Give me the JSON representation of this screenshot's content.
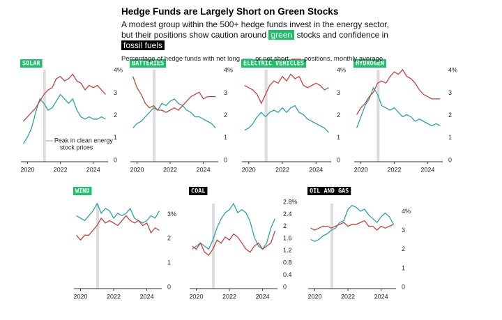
{
  "header": {
    "title": "Hedge Funds are Largely Short on Green Stocks",
    "subtitle": [
      "A modest group within the 500+ hedge funds invest in the energy sector,",
      "but their positions show caution around",
      "green",
      "stocks and confidence in",
      "fossil fuels"
    ],
    "legend": [
      "Percentage of hedge funds with net long",
      "or net short",
      "positions, monthly average"
    ]
  },
  "chart_data": [
    {
      "type": "line",
      "title": "SOLAR",
      "title_color": "#1fbf6b",
      "x": [
        2019.75,
        2020,
        2020.25,
        2020.5,
        2020.75,
        2021,
        2021.25,
        2021.5,
        2021.75,
        2022,
        2022.25,
        2022.5,
        2022.75,
        2023,
        2023.25,
        2023.5,
        2023.75,
        2024,
        2024.25,
        2024.5,
        2024.75
      ],
      "xlim": [
        2019.6,
        2024.9
      ],
      "xticks": [
        2020,
        2022,
        2024
      ],
      "ylim": [
        0,
        4.1
      ],
      "yticks": [
        {
          "value": 4,
          "label": "4%"
        },
        3,
        2,
        1,
        0
      ],
      "peak_band": [
        2020.95,
        2021.12
      ],
      "annotation": [
        "Peak in clean energy",
        "stock prices"
      ],
      "series": [
        {
          "color": "#2aa3a8",
          "values": [
            0.8,
            1.1,
            1.5,
            2.2,
            2.8,
            2.6,
            2.3,
            2.4,
            2.7,
            3.0,
            2.8,
            2.6,
            2.8,
            2.3,
            2.0,
            1.9,
            2.0,
            1.9,
            1.9,
            2.0,
            1.9
          ]
        },
        {
          "color": "#c6423a",
          "values": [
            1.8,
            2.0,
            2.2,
            2.4,
            2.7,
            3.0,
            3.2,
            3.3,
            3.7,
            3.8,
            3.6,
            3.7,
            3.9,
            3.6,
            3.5,
            3.2,
            3.4,
            3.3,
            3.4,
            3.2,
            3.0
          ]
        }
      ]
    },
    {
      "type": "line",
      "title": "BATTERIES",
      "title_color": "#1fbf6b",
      "x": [
        2019.75,
        2020,
        2020.25,
        2020.5,
        2020.75,
        2021,
        2021.25,
        2021.5,
        2021.75,
        2022,
        2022.25,
        2022.5,
        2022.75,
        2023,
        2023.25,
        2023.5,
        2023.75,
        2024,
        2024.25,
        2024.5,
        2024.75
      ],
      "xlim": [
        2019.6,
        2024.9
      ],
      "xticks": [
        2020,
        2022,
        2024
      ],
      "ylim": [
        0,
        4.1
      ],
      "yticks": [
        {
          "value": 4,
          "label": "4%"
        },
        3,
        2,
        1,
        0
      ],
      "peak_band": [
        2020.95,
        2021.12
      ],
      "series": [
        {
          "color": "#2aa3a8",
          "values": [
            1.5,
            1.7,
            1.8,
            2.0,
            2.2,
            2.4,
            2.3,
            2.6,
            2.5,
            2.7,
            2.8,
            2.6,
            2.5,
            2.3,
            2.2,
            2.0,
            2.0,
            1.9,
            1.8,
            1.7,
            1.5
          ]
        },
        {
          "color": "#c6423a",
          "values": [
            3.8,
            3.3,
            3.0,
            2.6,
            2.4,
            2.5,
            2.3,
            2.3,
            2.2,
            2.3,
            2.4,
            2.3,
            2.5,
            2.7,
            2.9,
            3.0,
            3.1,
            2.8,
            2.9,
            2.9,
            2.9
          ]
        }
      ]
    },
    {
      "type": "line",
      "title": "ELECTRIC VEHICLES",
      "title_color": "#1fbf6b",
      "x": [
        2019.75,
        2020,
        2020.25,
        2020.5,
        2020.75,
        2021,
        2021.25,
        2021.5,
        2021.75,
        2022,
        2022.25,
        2022.5,
        2022.75,
        2023,
        2023.25,
        2023.5,
        2023.75,
        2024,
        2024.25,
        2024.5,
        2024.75
      ],
      "xlim": [
        2019.6,
        2024.9
      ],
      "xticks": [
        2020,
        2022,
        2024
      ],
      "ylim": [
        0,
        4.1
      ],
      "yticks": [
        {
          "value": 4,
          "label": "4%"
        },
        3,
        2,
        1,
        0
      ],
      "peak_band": [
        2020.95,
        2021.12
      ],
      "series": [
        {
          "color": "#2aa3a8",
          "values": [
            1.4,
            1.5,
            1.7,
            2.0,
            2.2,
            2.0,
            2.2,
            2.3,
            2.2,
            2.4,
            2.2,
            2.4,
            2.5,
            2.2,
            2.1,
            1.9,
            1.8,
            1.7,
            1.6,
            1.5,
            1.3
          ]
        },
        {
          "color": "#c6423a",
          "values": [
            3.4,
            3.3,
            3.2,
            3.0,
            2.6,
            3.0,
            3.4,
            3.6,
            3.5,
            3.8,
            3.6,
            3.9,
            3.7,
            3.8,
            3.4,
            3.3,
            3.4,
            3.5,
            3.4,
            3.2,
            3.3
          ]
        }
      ]
    },
    {
      "type": "line",
      "title": "HYDROGEN",
      "title_color": "#1fbf6b",
      "x": [
        2019.75,
        2020,
        2020.25,
        2020.5,
        2020.75,
        2021,
        2021.25,
        2021.5,
        2021.75,
        2022,
        2022.25,
        2022.5,
        2022.75,
        2023,
        2023.25,
        2023.5,
        2023.75,
        2024,
        2024.25,
        2024.5,
        2024.75
      ],
      "xlim": [
        2019.6,
        2024.9
      ],
      "xticks": [
        2020,
        2022,
        2024
      ],
      "ylim": [
        0,
        4.1
      ],
      "yticks": [
        {
          "value": 4,
          "label": "4%"
        },
        3,
        2,
        1,
        0
      ],
      "peak_band": [
        2020.95,
        2021.12
      ],
      "series": [
        {
          "color": "#2aa3a8",
          "values": [
            1.5,
            2.0,
            2.5,
            2.8,
            3.3,
            3.0,
            2.5,
            2.4,
            2.3,
            2.4,
            2.2,
            2.0,
            2.1,
            2.0,
            1.8,
            1.9,
            1.8,
            1.7,
            1.6,
            1.7,
            1.6
          ]
        },
        {
          "color": "#c6423a",
          "values": [
            2.1,
            2.4,
            2.6,
            2.9,
            3.1,
            3.5,
            3.6,
            3.5,
            3.8,
            4.0,
            3.9,
            4.1,
            3.8,
            3.7,
            3.5,
            3.2,
            3.0,
            2.9,
            2.8,
            2.8,
            2.8
          ]
        }
      ]
    },
    {
      "type": "line",
      "title": "WIND",
      "title_color": "#1fbf6b",
      "x": [
        2019.75,
        2020,
        2020.25,
        2020.5,
        2020.75,
        2021,
        2021.25,
        2021.5,
        2021.75,
        2022,
        2022.25,
        2022.5,
        2022.75,
        2023,
        2023.25,
        2023.5,
        2023.75,
        2024,
        2024.25,
        2024.5,
        2024.75
      ],
      "xlim": [
        2019.6,
        2024.9
      ],
      "xticks": [
        2020,
        2022,
        2024
      ],
      "ylim": [
        0,
        3.5
      ],
      "yticks": [
        {
          "value": 3,
          "label": "3%"
        },
        2,
        1,
        0
      ],
      "peak_band": [
        2020.95,
        2021.12
      ],
      "series": [
        {
          "color": "#2aa3a8",
          "values": [
            3.0,
            2.9,
            2.8,
            3.0,
            3.2,
            3.5,
            3.1,
            3.3,
            3.2,
            2.9,
            3.1,
            3.0,
            3.1,
            3.3,
            2.9,
            2.8,
            2.7,
            2.8,
            3.0,
            2.9,
            3.2
          ]
        },
        {
          "color": "#c6423a",
          "values": [
            2.2,
            2.0,
            2.2,
            2.2,
            2.4,
            2.6,
            2.9,
            2.7,
            2.8,
            2.7,
            2.6,
            2.8,
            3.0,
            2.8,
            2.7,
            2.8,
            2.6,
            2.7,
            2.3,
            2.5,
            2.4
          ]
        }
      ]
    },
    {
      "type": "line",
      "title": "COAL",
      "title_color": "#000000",
      "x": [
        2019.75,
        2020,
        2020.25,
        2020.5,
        2020.75,
        2021,
        2021.25,
        2021.5,
        2021.75,
        2022,
        2022.25,
        2022.5,
        2022.75,
        2023,
        2023.25,
        2023.5,
        2023.75,
        2024,
        2024.25,
        2024.5,
        2024.75
      ],
      "xlim": [
        2019.6,
        2024.9
      ],
      "xticks": [
        2020,
        2022,
        2024
      ],
      "ylim": [
        0,
        2.8
      ],
      "yticks": [
        {
          "value": 2.8,
          "label": "2.8%"
        },
        2.4,
        2,
        1.6,
        1.2,
        0.8,
        0.4,
        0
      ],
      "peak_band": [
        2020.95,
        2021.12
      ],
      "series": [
        {
          "color": "#2aa3a8",
          "values": [
            1.3,
            1.4,
            1.5,
            1.4,
            1.3,
            1.6,
            2.0,
            2.3,
            2.5,
            2.6,
            2.8,
            2.5,
            2.6,
            2.5,
            2.2,
            1.7,
            1.4,
            1.3,
            1.5,
            2.0,
            2.3
          ]
        },
        {
          "color": "#c6423a",
          "values": [
            1.4,
            1.3,
            1.5,
            1.2,
            1.1,
            1.3,
            1.6,
            1.5,
            1.7,
            1.6,
            1.8,
            1.7,
            1.5,
            1.3,
            1.2,
            1.4,
            1.5,
            1.3,
            1.4,
            1.5,
            1.9
          ]
        }
      ]
    },
    {
      "type": "line",
      "title": "OIL AND GAS",
      "title_color": "#000000",
      "x": [
        2019.75,
        2020,
        2020.25,
        2020.5,
        2020.75,
        2021,
        2021.25,
        2021.5,
        2021.75,
        2022,
        2022.25,
        2022.5,
        2022.75,
        2023,
        2023.25,
        2023.5,
        2023.75,
        2024,
        2024.25,
        2024.5,
        2024.75
      ],
      "xlim": [
        2019.6,
        2024.9
      ],
      "xticks": [
        2020,
        2022,
        2024
      ],
      "ylim": [
        0,
        4.5
      ],
      "yticks": [
        {
          "value": 4,
          "label": "4%"
        },
        3,
        2,
        1,
        0
      ],
      "peak_band": [
        2020.95,
        2021.12
      ],
      "series": [
        {
          "color": "#2aa3a8",
          "values": [
            2.6,
            2.5,
            2.6,
            2.8,
            2.9,
            3.1,
            3.2,
            3.5,
            3.6,
            4.2,
            4.4,
            4.3,
            4.1,
            4.2,
            3.9,
            3.7,
            3.5,
            3.8,
            4.0,
            3.8,
            3.4
          ]
        },
        {
          "color": "#c6423a",
          "values": [
            3.2,
            3.1,
            3.2,
            3.3,
            3.3,
            3.2,
            3.3,
            3.4,
            3.5,
            3.3,
            3.4,
            3.4,
            3.5,
            3.6,
            3.3,
            3.3,
            3.1,
            3.3,
            3.2,
            3.3,
            3.4
          ]
        }
      ]
    }
  ]
}
